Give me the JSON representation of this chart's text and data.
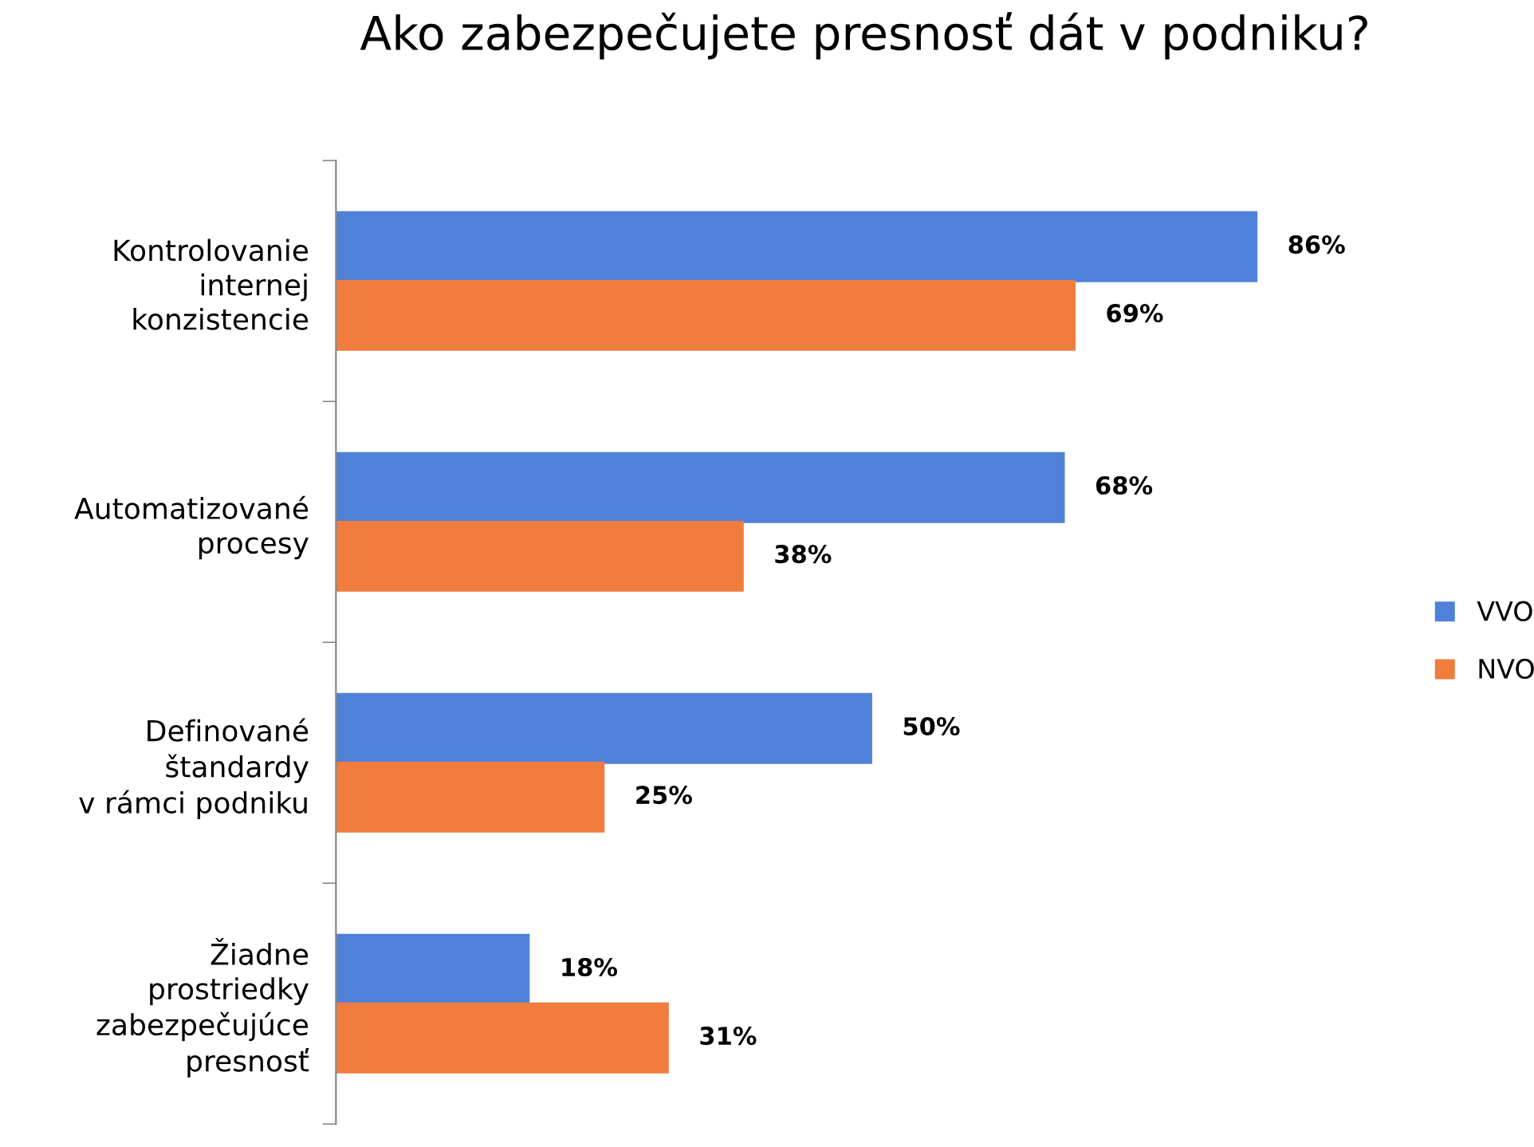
{
  "chart_data": {
    "type": "bar",
    "orientation": "horizontal",
    "title": "Ako zabezpečujete presnosť dát v podniku?",
    "categories": [
      "Kontrolovanie\ninternej\nkonzistencie",
      "Automatizované\nprocesy",
      "Definované\nštandardy\nv rámci podniku",
      "Žiadne\nprostriedky\nzabezpečujúce\npresnosť"
    ],
    "series": [
      {
        "name": "VVO",
        "color": "#4f81d9",
        "values": [
          86,
          68,
          50,
          18
        ],
        "value_labels": [
          "86%",
          "68%",
          "50%",
          "18%"
        ]
      },
      {
        "name": "NVO",
        "color": "#f07c3e",
        "values": [
          69,
          38,
          25,
          31
        ],
        "value_labels": [
          "69%",
          "38%",
          "25%",
          "31%"
        ]
      }
    ],
    "legend": "right",
    "grid": false
  }
}
